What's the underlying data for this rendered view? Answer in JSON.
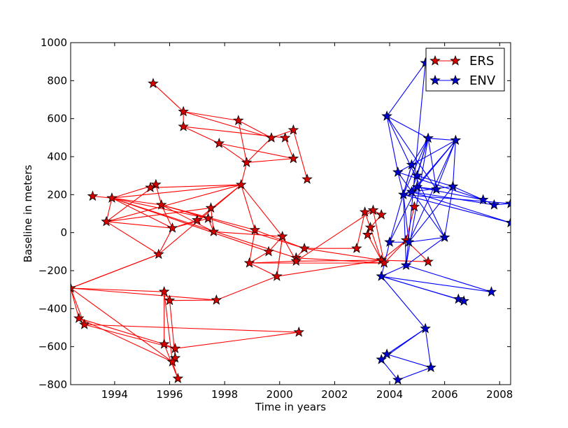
{
  "chart_data": {
    "type": "scatter",
    "title": "",
    "xlabel": "Time in years",
    "ylabel": "Baseline in meters",
    "xlim": [
      1992.4,
      2008.4
    ],
    "ylim": [
      -800,
      1000
    ],
    "xticks": [
      1994,
      1996,
      1998,
      2000,
      2002,
      2004,
      2006,
      2008
    ],
    "yticks": [
      -800,
      -600,
      -400,
      -200,
      0,
      200,
      400,
      600,
      800,
      1000
    ],
    "xtick_labels": [
      "1994",
      "1996",
      "1998",
      "2000",
      "2002",
      "2004",
      "2006",
      "2008"
    ],
    "ytick_labels": [
      "−800",
      "−600",
      "−400",
      "−200",
      "0",
      "200",
      "400",
      "600",
      "800",
      "1000"
    ],
    "grid": false,
    "legend_position": "top-right",
    "series": [
      {
        "name": "ERS",
        "color": "#ff0000",
        "marker_color": "#d40000",
        "points": [
          [
            1995.4,
            785
          ],
          [
            1996.5,
            637
          ],
          [
            1996.5,
            558
          ],
          [
            1998.5,
            590
          ],
          [
            1997.8,
            470
          ],
          [
            1998.8,
            369
          ],
          [
            1999.7,
            499
          ],
          [
            2000.2,
            499
          ],
          [
            2000.5,
            540
          ],
          [
            2000.5,
            390
          ],
          [
            2001.0,
            281
          ],
          [
            1993.2,
            192
          ],
          [
            1993.9,
            182
          ],
          [
            1993.7,
            58
          ],
          [
            1995.5,
            253
          ],
          [
            1995.3,
            237
          ],
          [
            1995.7,
            146
          ],
          [
            1996.1,
            24
          ],
          [
            1997.0,
            66
          ],
          [
            1997.4,
            75
          ],
          [
            1997.5,
            130
          ],
          [
            1997.6,
            5
          ],
          [
            1998.6,
            252
          ],
          [
            1999.1,
            14
          ],
          [
            1995.6,
            -114
          ],
          [
            1999.6,
            -100
          ],
          [
            2000.1,
            -20
          ],
          [
            2000.9,
            -83
          ],
          [
            2000.6,
            -133
          ],
          [
            2000.6,
            -150
          ],
          [
            1998.9,
            -160
          ],
          [
            1999.9,
            -230
          ],
          [
            1992.4,
            -292
          ],
          [
            1995.8,
            -311
          ],
          [
            1996.0,
            -357
          ],
          [
            1997.7,
            -355
          ],
          [
            1992.7,
            -451
          ],
          [
            1992.9,
            -484
          ],
          [
            1995.8,
            -587
          ],
          [
            1996.2,
            -610
          ],
          [
            1996.2,
            -660
          ],
          [
            1996.1,
            -680
          ],
          [
            1996.3,
            -768
          ],
          [
            2000.7,
            -524
          ],
          [
            2002.8,
            -83
          ],
          [
            2003.1,
            108
          ],
          [
            2003.4,
            118
          ],
          [
            2003.7,
            94
          ],
          [
            2003.3,
            27
          ],
          [
            2003.2,
            -11
          ],
          [
            2003.7,
            -145
          ],
          [
            2003.8,
            -160
          ],
          [
            2004.6,
            -40
          ],
          [
            2004.9,
            136
          ],
          [
            2005.4,
            -153
          ]
        ],
        "edges": [
          [
            0,
            1
          ],
          [
            1,
            2
          ],
          [
            1,
            3
          ],
          [
            1,
            6
          ],
          [
            2,
            4
          ],
          [
            2,
            7
          ],
          [
            3,
            5
          ],
          [
            3,
            6
          ],
          [
            4,
            5
          ],
          [
            4,
            9
          ],
          [
            5,
            6
          ],
          [
            6,
            8
          ],
          [
            7,
            9
          ],
          [
            8,
            10
          ],
          [
            9,
            5
          ],
          [
            11,
            12
          ],
          [
            12,
            13
          ],
          [
            12,
            14
          ],
          [
            12,
            16
          ],
          [
            12,
            17
          ],
          [
            12,
            19
          ],
          [
            12,
            22
          ],
          [
            12,
            25
          ],
          [
            12,
            28
          ],
          [
            13,
            14
          ],
          [
            13,
            17
          ],
          [
            13,
            20
          ],
          [
            13,
            22
          ],
          [
            13,
            24
          ],
          [
            14,
            15
          ],
          [
            14,
            16
          ],
          [
            15,
            22
          ],
          [
            16,
            17
          ],
          [
            16,
            19
          ],
          [
            16,
            21
          ],
          [
            16,
            23
          ],
          [
            17,
            18
          ],
          [
            17,
            19
          ],
          [
            17,
            24
          ],
          [
            18,
            22
          ],
          [
            19,
            21
          ],
          [
            19,
            27
          ],
          [
            20,
            21
          ],
          [
            21,
            26
          ],
          [
            22,
            26
          ],
          [
            22,
            23
          ],
          [
            22,
            5
          ],
          [
            23,
            27
          ],
          [
            23,
            30
          ],
          [
            24,
            22
          ],
          [
            24,
            32
          ],
          [
            25,
            26
          ],
          [
            25,
            30
          ],
          [
            26,
            31
          ],
          [
            26,
            29
          ],
          [
            27,
            28
          ],
          [
            28,
            29
          ],
          [
            29,
            30
          ],
          [
            30,
            31
          ],
          [
            31,
            26
          ],
          [
            32,
            33
          ],
          [
            32,
            36
          ],
          [
            32,
            37
          ],
          [
            32,
            35
          ],
          [
            32,
            41
          ],
          [
            33,
            34
          ],
          [
            33,
            38
          ],
          [
            34,
            35
          ],
          [
            34,
            40
          ],
          [
            35,
            31
          ],
          [
            36,
            37
          ],
          [
            36,
            38
          ],
          [
            36,
            41
          ],
          [
            37,
            39
          ],
          [
            37,
            43
          ],
          [
            38,
            39
          ],
          [
            38,
            42
          ],
          [
            39,
            40
          ],
          [
            40,
            41
          ],
          [
            41,
            42
          ],
          [
            39,
            43
          ],
          [
            33,
            41
          ],
          [
            24,
            32
          ],
          [
            29,
            46
          ],
          [
            29,
            50
          ],
          [
            28,
            51
          ],
          [
            27,
            44
          ],
          [
            27,
            50
          ],
          [
            31,
            50
          ],
          [
            30,
            51
          ],
          [
            45,
            46
          ],
          [
            46,
            47
          ],
          [
            47,
            48
          ],
          [
            48,
            49
          ],
          [
            49,
            50
          ],
          [
            45,
            50
          ],
          [
            46,
            51
          ],
          [
            50,
            52
          ],
          [
            51,
            52
          ],
          [
            52,
            53
          ],
          [
            52,
            54
          ],
          [
            50,
            54
          ],
          [
            44,
            45
          ]
        ]
      },
      {
        "name": "ENV",
        "color": "#0000ff",
        "marker_color": "#0000cc",
        "points": [
          [
            2005.3,
            893
          ],
          [
            2003.9,
            613
          ],
          [
            2005.4,
            497
          ],
          [
            2006.4,
            486
          ],
          [
            2004.8,
            357
          ],
          [
            2005.0,
            300
          ],
          [
            2004.3,
            318
          ],
          [
            2004.5,
            200
          ],
          [
            2004.8,
            215
          ],
          [
            2005.0,
            240
          ],
          [
            2005.7,
            228
          ],
          [
            2006.3,
            243
          ],
          [
            2007.4,
            173
          ],
          [
            2007.8,
            146
          ],
          [
            2008.4,
            153
          ],
          [
            2008.4,
            52
          ],
          [
            2004.0,
            -50
          ],
          [
            2004.7,
            -50
          ],
          [
            2006.0,
            -25
          ],
          [
            2004.6,
            -172
          ],
          [
            2003.7,
            -230
          ],
          [
            2006.5,
            -350
          ],
          [
            2006.7,
            -360
          ],
          [
            2007.7,
            -312
          ],
          [
            2005.3,
            -505
          ],
          [
            2003.9,
            -640
          ],
          [
            2003.7,
            -668
          ],
          [
            2005.5,
            -710
          ],
          [
            2004.3,
            -775
          ]
        ],
        "edges": [
          [
            0,
            1
          ],
          [
            0,
            19
          ],
          [
            1,
            2
          ],
          [
            1,
            6
          ],
          [
            1,
            18
          ],
          [
            1,
            10
          ],
          [
            2,
            3
          ],
          [
            2,
            4
          ],
          [
            2,
            5
          ],
          [
            2,
            7
          ],
          [
            2,
            8
          ],
          [
            2,
            10
          ],
          [
            2,
            19
          ],
          [
            3,
            4
          ],
          [
            3,
            8
          ],
          [
            3,
            9
          ],
          [
            3,
            10
          ],
          [
            3,
            11
          ],
          [
            3,
            17
          ],
          [
            4,
            6
          ],
          [
            4,
            7
          ],
          [
            4,
            16
          ],
          [
            5,
            9
          ],
          [
            5,
            11
          ],
          [
            6,
            7
          ],
          [
            6,
            12
          ],
          [
            6,
            18
          ],
          [
            7,
            8
          ],
          [
            7,
            9
          ],
          [
            7,
            14
          ],
          [
            7,
            15
          ],
          [
            7,
            17
          ],
          [
            8,
            13
          ],
          [
            8,
            11
          ],
          [
            9,
            10
          ],
          [
            9,
            12
          ],
          [
            9,
            16
          ],
          [
            11,
            12
          ],
          [
            11,
            17
          ],
          [
            12,
            13
          ],
          [
            13,
            14
          ],
          [
            14,
            15
          ],
          [
            15,
            8
          ],
          [
            16,
            17
          ],
          [
            16,
            20
          ],
          [
            17,
            18
          ],
          [
            18,
            19
          ],
          [
            19,
            20
          ],
          [
            19,
            23
          ],
          [
            20,
            21
          ],
          [
            20,
            22
          ],
          [
            20,
            23
          ],
          [
            21,
            22
          ],
          [
            20,
            24
          ],
          [
            24,
            25
          ],
          [
            24,
            26
          ],
          [
            24,
            27
          ],
          [
            25,
            26
          ],
          [
            25,
            27
          ],
          [
            26,
            28
          ],
          [
            27,
            28
          ],
          [
            18,
            11
          ],
          [
            19,
            7
          ]
        ]
      }
    ]
  }
}
